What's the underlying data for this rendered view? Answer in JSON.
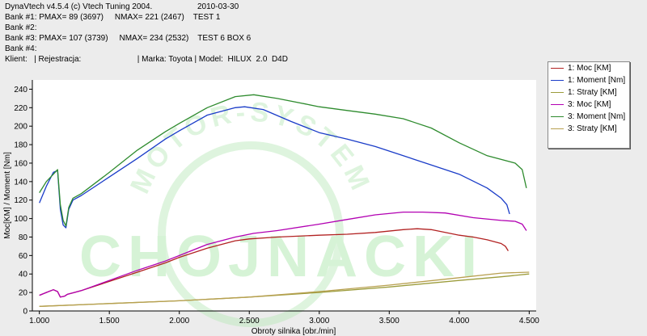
{
  "header": {
    "app": "DynaVtech v4.5.4 (c) Vtech Tuning 2004.",
    "date": "2010-03-30",
    "bank1": "Bank #1: PMAX= 89 (3697)     NMAX= 221 (2467)    TEST 1",
    "bank2": "Bank #2:",
    "bank3": "Bank #3: PMAX= 107 (3739)     NMAX= 234 (2532)    TEST 6 BOX 6",
    "bank4": "Bank #4:",
    "client": "Klient:   | Rejestracja:                         | Marka: Toyota | Model:  HILUX  2.0  D4D"
  },
  "watermark": {
    "arc": "MOTOR-SYSTEM",
    "main": "CHOJNACKI"
  },
  "chart_data": {
    "type": "line",
    "xlabel": "Obroty silnika [obr./min]",
    "ylabel": "Moc[KM] / Moment [Nm]",
    "xlim": [
      950,
      4550
    ],
    "ylim": [
      0,
      250
    ],
    "x_ticks": [
      "1.000",
      "1.500",
      "2.000",
      "2.500",
      "3.000",
      "3.500",
      "4.000",
      "4.500"
    ],
    "y_ticks": [
      "0",
      "20",
      "40",
      "60",
      "80",
      "100",
      "120",
      "140",
      "160",
      "180",
      "200",
      "220",
      "240"
    ],
    "grid": false,
    "legend_position": "top-right",
    "series": [
      {
        "name": "1: Moc [KM]",
        "color": "#b22222",
        "points": [
          [
            1000,
            17
          ],
          [
            1050,
            20
          ],
          [
            1100,
            23
          ],
          [
            1130,
            21
          ],
          [
            1150,
            15
          ],
          [
            1180,
            16
          ],
          [
            1200,
            18
          ],
          [
            1250,
            20
          ],
          [
            1300,
            22
          ],
          [
            1500,
            32
          ],
          [
            1700,
            42
          ],
          [
            1900,
            52
          ],
          [
            2000,
            58
          ],
          [
            2200,
            68
          ],
          [
            2400,
            76
          ],
          [
            2500,
            78
          ],
          [
            2700,
            80
          ],
          [
            3000,
            82
          ],
          [
            3200,
            83
          ],
          [
            3400,
            85
          ],
          [
            3600,
            88
          ],
          [
            3700,
            89
          ],
          [
            3800,
            88
          ],
          [
            4000,
            82
          ],
          [
            4100,
            80
          ],
          [
            4200,
            77
          ],
          [
            4300,
            73
          ],
          [
            4330,
            70
          ],
          [
            4350,
            65
          ]
        ]
      },
      {
        "name": "1: Moment [Nm]",
        "color": "#1a3cc8",
        "points": [
          [
            1000,
            117
          ],
          [
            1050,
            135
          ],
          [
            1100,
            150
          ],
          [
            1130,
            152
          ],
          [
            1150,
            110
          ],
          [
            1170,
            93
          ],
          [
            1190,
            90
          ],
          [
            1210,
            110
          ],
          [
            1240,
            120
          ],
          [
            1300,
            125
          ],
          [
            1500,
            145
          ],
          [
            1700,
            165
          ],
          [
            1900,
            186
          ],
          [
            2000,
            195
          ],
          [
            2200,
            212
          ],
          [
            2400,
            220
          ],
          [
            2467,
            221
          ],
          [
            2600,
            218
          ],
          [
            2800,
            205
          ],
          [
            3000,
            193
          ],
          [
            3200,
            186
          ],
          [
            3400,
            178
          ],
          [
            3600,
            168
          ],
          [
            3800,
            158
          ],
          [
            4000,
            148
          ],
          [
            4200,
            133
          ],
          [
            4300,
            122
          ],
          [
            4340,
            115
          ],
          [
            4360,
            105
          ]
        ]
      },
      {
        "name": "1: Straty [KM]",
        "color": "#9c9c3c",
        "points": [
          [
            1000,
            5
          ],
          [
            1500,
            8
          ],
          [
            2000,
            11
          ],
          [
            2500,
            15
          ],
          [
            3000,
            20
          ],
          [
            3500,
            26
          ],
          [
            4000,
            33
          ],
          [
            4300,
            37
          ],
          [
            4500,
            40
          ]
        ]
      },
      {
        "name": "3: Moc [KM]",
        "color": "#b200b2",
        "points": [
          [
            1000,
            17
          ],
          [
            1050,
            20
          ],
          [
            1100,
            23
          ],
          [
            1130,
            21
          ],
          [
            1150,
            15
          ],
          [
            1180,
            16
          ],
          [
            1200,
            18
          ],
          [
            1250,
            20
          ],
          [
            1300,
            22
          ],
          [
            1500,
            33
          ],
          [
            1700,
            44
          ],
          [
            1900,
            54
          ],
          [
            2000,
            60
          ],
          [
            2200,
            72
          ],
          [
            2400,
            80
          ],
          [
            2532,
            84
          ],
          [
            2700,
            87
          ],
          [
            3000,
            94
          ],
          [
            3200,
            99
          ],
          [
            3400,
            104
          ],
          [
            3600,
            107
          ],
          [
            3739,
            107
          ],
          [
            3900,
            106
          ],
          [
            4100,
            101
          ],
          [
            4300,
            98
          ],
          [
            4400,
            97
          ],
          [
            4450,
            94
          ],
          [
            4480,
            87
          ]
        ]
      },
      {
        "name": "3: Moment [Nm]",
        "color": "#2e8b2e",
        "points": [
          [
            1000,
            128
          ],
          [
            1050,
            140
          ],
          [
            1100,
            148
          ],
          [
            1130,
            153
          ],
          [
            1150,
            115
          ],
          [
            1170,
            98
          ],
          [
            1190,
            92
          ],
          [
            1210,
            112
          ],
          [
            1240,
            122
          ],
          [
            1300,
            127
          ],
          [
            1500,
            150
          ],
          [
            1700,
            174
          ],
          [
            1900,
            194
          ],
          [
            2000,
            203
          ],
          [
            2200,
            220
          ],
          [
            2400,
            232
          ],
          [
            2532,
            234
          ],
          [
            2700,
            230
          ],
          [
            2900,
            224
          ],
          [
            3000,
            221
          ],
          [
            3200,
            217
          ],
          [
            3400,
            213
          ],
          [
            3600,
            208
          ],
          [
            3800,
            198
          ],
          [
            4000,
            182
          ],
          [
            4200,
            168
          ],
          [
            4400,
            160
          ],
          [
            4450,
            153
          ],
          [
            4480,
            133
          ]
        ]
      },
      {
        "name": "3: Straty [KM]",
        "color": "#b8a050",
        "points": [
          [
            1000,
            5
          ],
          [
            1500,
            8
          ],
          [
            2000,
            11
          ],
          [
            2500,
            15
          ],
          [
            3000,
            21
          ],
          [
            3500,
            28
          ],
          [
            4000,
            36
          ],
          [
            4300,
            41
          ],
          [
            4500,
            42
          ]
        ]
      }
    ]
  }
}
